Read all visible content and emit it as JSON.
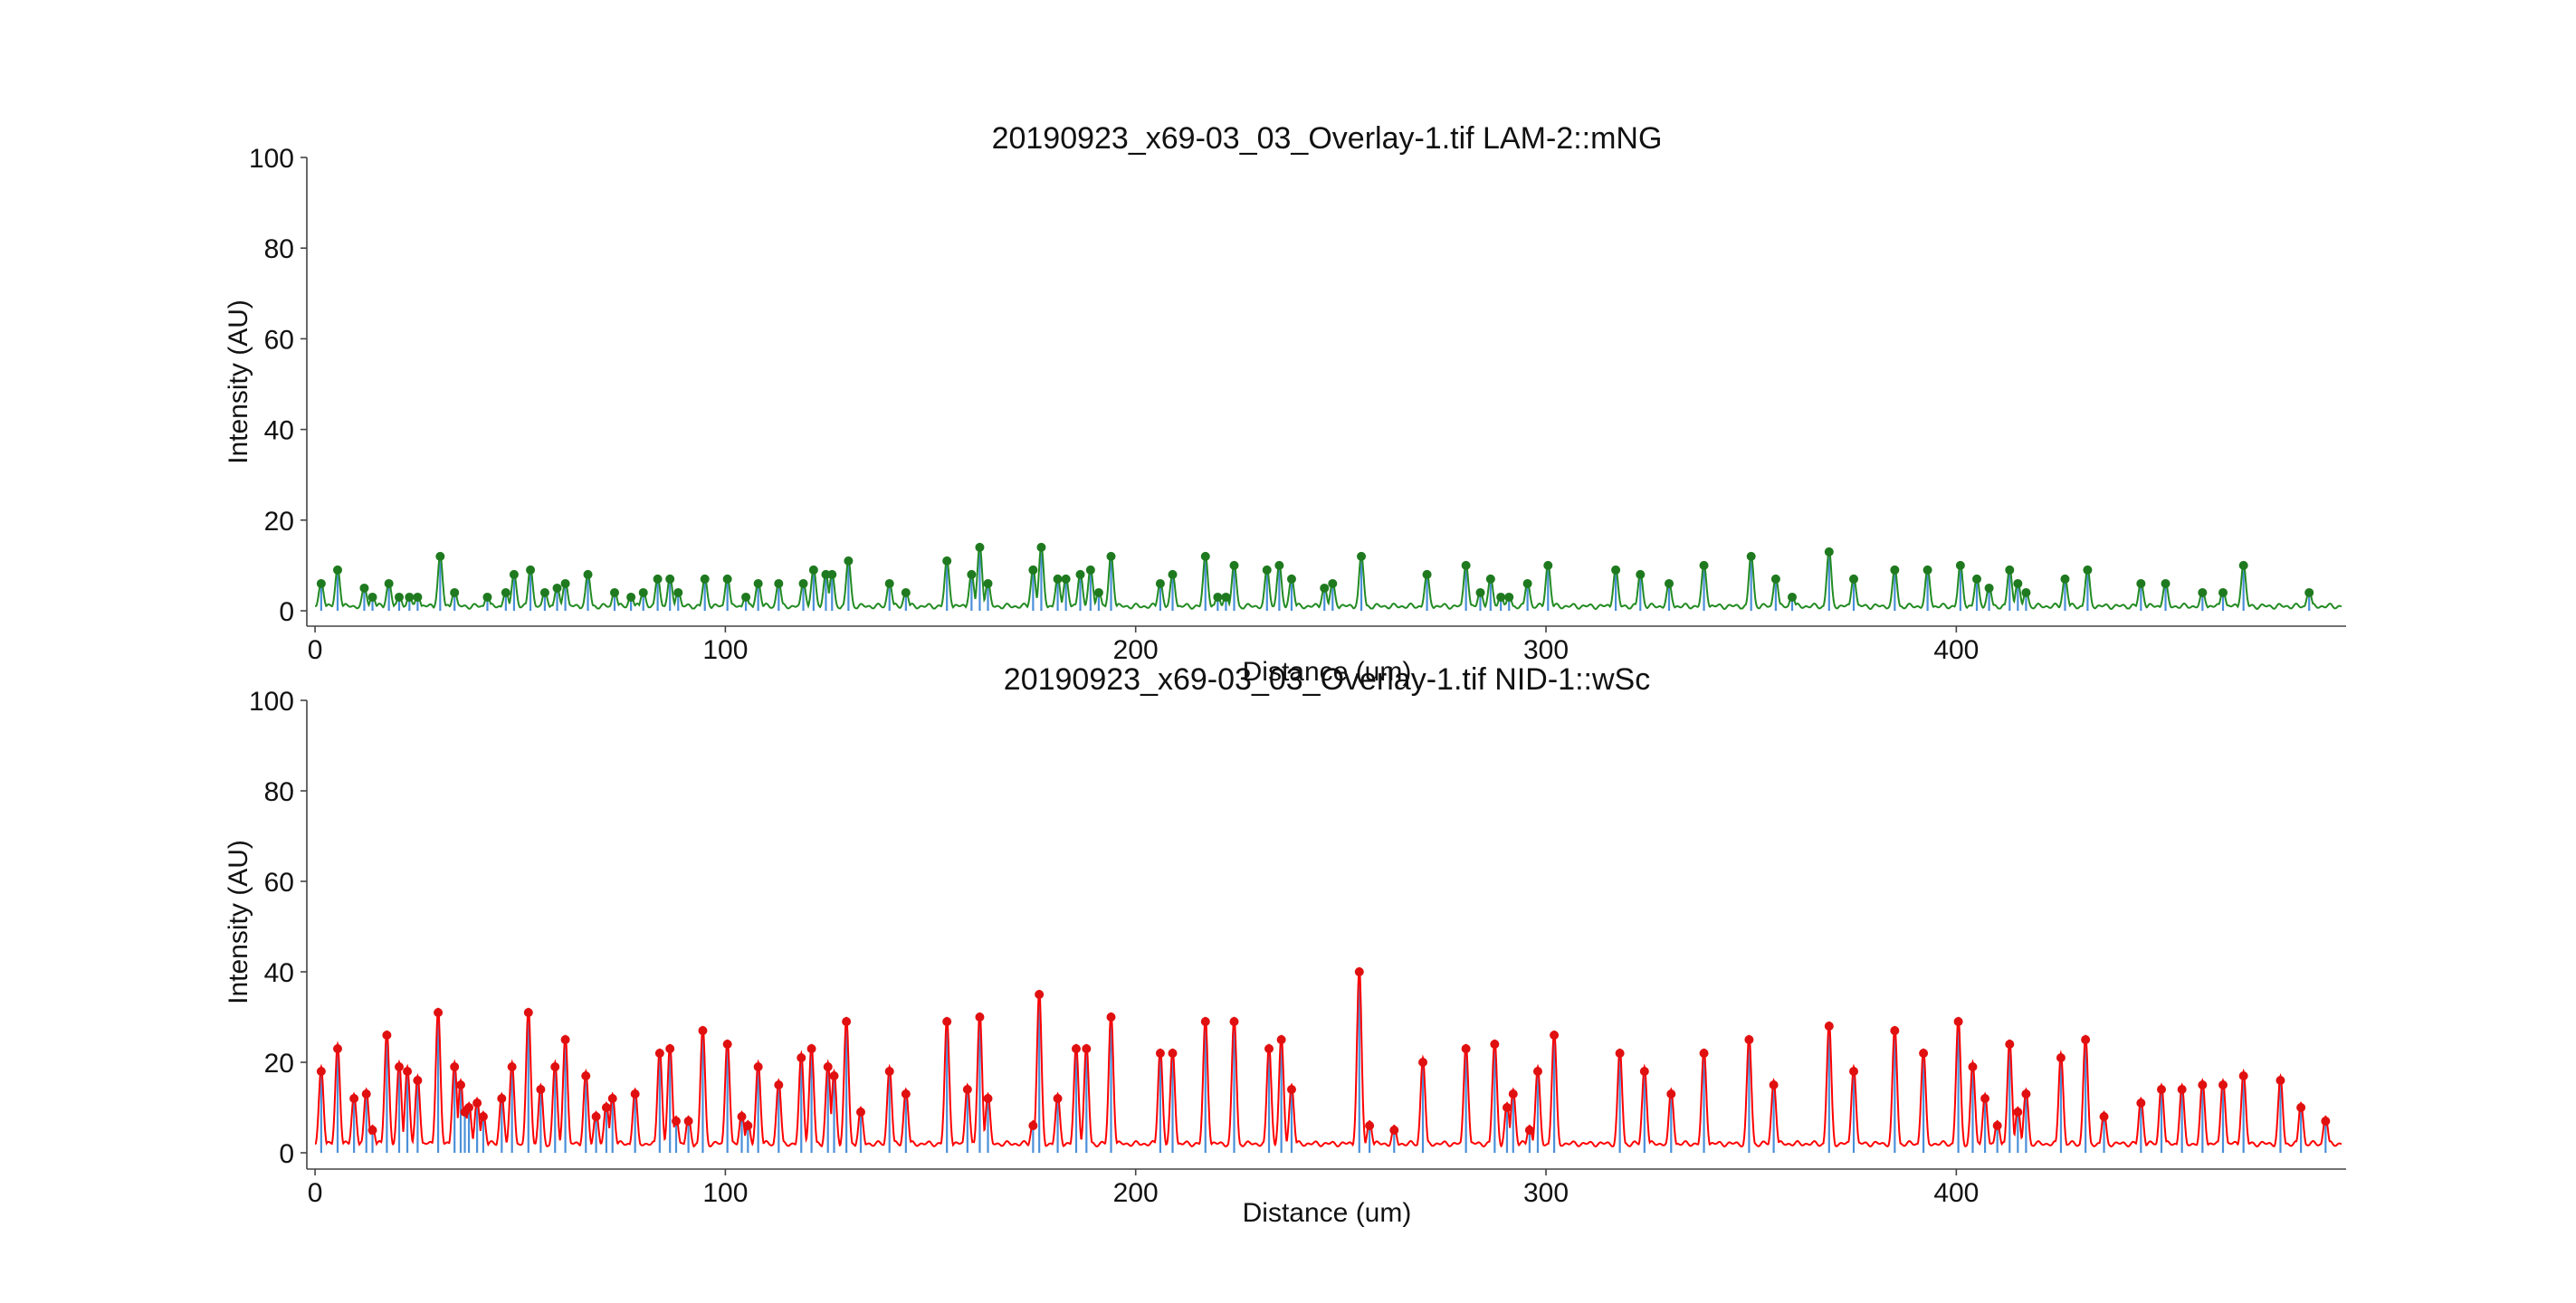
{
  "chart_data": [
    {
      "type": "line",
      "title": "20190923_x69-03_03_Overlay-1.tif LAM-2::mNG",
      "xlabel": "Distance (um)",
      "ylabel": "Intensity (AU)",
      "xlim": [
        -2,
        495
      ],
      "ylim": [
        0,
        100
      ],
      "xticks": [
        "0",
        "100",
        "200",
        "300",
        "400"
      ],
      "yticks": [
        "0",
        "20",
        "40",
        "60",
        "80",
        "100"
      ],
      "grid": false,
      "colors": {
        "signal": "#228b22",
        "peak_marker": "#1f7a1f",
        "peak_stem": "#4a90d9"
      },
      "peaks": [
        [
          1.5,
          6
        ],
        [
          5.5,
          9
        ],
        [
          12,
          5
        ],
        [
          14,
          3
        ],
        [
          18,
          6
        ],
        [
          20.5,
          3
        ],
        [
          23,
          3
        ],
        [
          25,
          3
        ],
        [
          30.5,
          12
        ],
        [
          34,
          4
        ],
        [
          42,
          3
        ],
        [
          46.5,
          4
        ],
        [
          48.5,
          8
        ],
        [
          52.5,
          9
        ],
        [
          56,
          4
        ],
        [
          59,
          5
        ],
        [
          61,
          6
        ],
        [
          66.5,
          8
        ],
        [
          73,
          4
        ],
        [
          77,
          3
        ],
        [
          80,
          4
        ],
        [
          83.5,
          7
        ],
        [
          86.5,
          7
        ],
        [
          88.5,
          4
        ],
        [
          95,
          7
        ],
        [
          100.5,
          7
        ],
        [
          105,
          3
        ],
        [
          108,
          6
        ],
        [
          113,
          6
        ],
        [
          119,
          6
        ],
        [
          121.5,
          9
        ],
        [
          124.5,
          8
        ],
        [
          126,
          8
        ],
        [
          130,
          11
        ],
        [
          140,
          6
        ],
        [
          144,
          4
        ],
        [
          154,
          11
        ],
        [
          160,
          8
        ],
        [
          162,
          14
        ],
        [
          164,
          6
        ],
        [
          175,
          9
        ],
        [
          177,
          14
        ],
        [
          181,
          7
        ],
        [
          183,
          7
        ],
        [
          186.5,
          8
        ],
        [
          189,
          9
        ],
        [
          191,
          4
        ],
        [
          194,
          12
        ],
        [
          206,
          6
        ],
        [
          209,
          8
        ],
        [
          217,
          12
        ],
        [
          220,
          3
        ],
        [
          222,
          3
        ],
        [
          224,
          10
        ],
        [
          232,
          9
        ],
        [
          235,
          10
        ],
        [
          238,
          7
        ],
        [
          246,
          5
        ],
        [
          248,
          6
        ],
        [
          255,
          12
        ],
        [
          271,
          8
        ],
        [
          280.5,
          10
        ],
        [
          284,
          4
        ],
        [
          286.5,
          7
        ],
        [
          289,
          3
        ],
        [
          291,
          3
        ],
        [
          295.5,
          6
        ],
        [
          300.5,
          10
        ],
        [
          317,
          9
        ],
        [
          323,
          8
        ],
        [
          330,
          6
        ],
        [
          338.5,
          10
        ],
        [
          350,
          12
        ],
        [
          356,
          7
        ],
        [
          360,
          3
        ],
        [
          369,
          13
        ],
        [
          375,
          7
        ],
        [
          385,
          9
        ],
        [
          393,
          9
        ],
        [
          401,
          10
        ],
        [
          405,
          7
        ],
        [
          408,
          5
        ],
        [
          413,
          9
        ],
        [
          415,
          6
        ],
        [
          417,
          4
        ],
        [
          426.5,
          7
        ],
        [
          432,
          9
        ],
        [
          445,
          6
        ],
        [
          451,
          6
        ],
        [
          460,
          4
        ],
        [
          465,
          4
        ],
        [
          470,
          10
        ],
        [
          486,
          4
        ]
      ],
      "baseline": 1
    },
    {
      "type": "line",
      "title": "20190923_x69-03_03_Overlay-1.tif NID-1::wSc",
      "xlabel": "Distance (um)",
      "ylabel": "Intensity (AU)",
      "xlim": [
        -2,
        495
      ],
      "ylim": [
        0,
        100
      ],
      "xticks": [
        "0",
        "100",
        "200",
        "300",
        "400"
      ],
      "yticks": [
        "0",
        "20",
        "40",
        "60",
        "80",
        "100"
      ],
      "grid": false,
      "colors": {
        "signal": "#ff0000",
        "peak_marker": "#e01010",
        "peak_stem": "#4a90d9"
      },
      "peaks": [
        [
          1.5,
          18
        ],
        [
          5.5,
          23
        ],
        [
          9.5,
          12
        ],
        [
          12.5,
          13
        ],
        [
          14,
          5
        ],
        [
          17.5,
          26
        ],
        [
          20.5,
          19
        ],
        [
          22.5,
          18
        ],
        [
          25,
          16
        ],
        [
          30,
          31
        ],
        [
          34,
          19
        ],
        [
          35.5,
          15
        ],
        [
          36.5,
          9
        ],
        [
          37.5,
          10
        ],
        [
          39.5,
          11
        ],
        [
          41,
          8
        ],
        [
          45.5,
          12
        ],
        [
          48,
          19
        ],
        [
          52,
          31
        ],
        [
          55,
          14
        ],
        [
          58.5,
          19
        ],
        [
          61,
          25
        ],
        [
          66,
          17
        ],
        [
          68.5,
          8
        ],
        [
          71,
          10
        ],
        [
          72.5,
          12
        ],
        [
          78,
          13
        ],
        [
          84,
          22
        ],
        [
          86.5,
          23
        ],
        [
          88,
          7
        ],
        [
          91,
          7
        ],
        [
          94.5,
          27
        ],
        [
          100.5,
          24
        ],
        [
          104,
          8
        ],
        [
          105.5,
          6
        ],
        [
          108,
          19
        ],
        [
          113,
          15
        ],
        [
          118.5,
          21
        ],
        [
          121,
          23
        ],
        [
          125,
          19
        ],
        [
          126.5,
          17
        ],
        [
          129.5,
          29
        ],
        [
          133,
          9
        ],
        [
          140,
          18
        ],
        [
          144,
          13
        ],
        [
          154,
          29
        ],
        [
          159,
          14
        ],
        [
          162,
          30
        ],
        [
          164,
          12
        ],
        [
          175,
          6
        ],
        [
          176.5,
          35
        ],
        [
          181,
          12
        ],
        [
          185.5,
          23
        ],
        [
          188,
          23
        ],
        [
          194,
          30
        ],
        [
          206,
          22
        ],
        [
          209,
          22
        ],
        [
          217,
          29
        ],
        [
          224,
          29
        ],
        [
          232.5,
          23
        ],
        [
          235.5,
          25
        ],
        [
          238,
          14
        ],
        [
          254.5,
          40
        ],
        [
          257,
          6
        ],
        [
          263,
          5
        ],
        [
          270,
          20
        ],
        [
          280.5,
          23
        ],
        [
          287.5,
          24
        ],
        [
          290.5,
          10
        ],
        [
          292,
          13
        ],
        [
          296,
          5
        ],
        [
          298,
          18
        ],
        [
          302,
          26
        ],
        [
          318,
          22
        ],
        [
          324,
          18
        ],
        [
          330.5,
          13
        ],
        [
          338.5,
          22
        ],
        [
          349.5,
          25
        ],
        [
          355.5,
          15
        ],
        [
          369,
          28
        ],
        [
          375,
          18
        ],
        [
          385,
          27
        ],
        [
          392,
          22
        ],
        [
          400.5,
          29
        ],
        [
          404,
          19
        ],
        [
          407,
          12
        ],
        [
          410,
          6
        ],
        [
          413,
          24
        ],
        [
          415,
          9
        ],
        [
          417,
          13
        ],
        [
          425.5,
          21
        ],
        [
          431.5,
          25
        ],
        [
          436,
          8
        ],
        [
          445,
          11
        ],
        [
          450,
          14
        ],
        [
          455,
          14
        ],
        [
          460,
          15
        ],
        [
          465,
          15
        ],
        [
          470,
          17
        ],
        [
          479,
          16
        ],
        [
          484,
          10
        ],
        [
          490,
          7
        ]
      ],
      "baseline": 2
    }
  ]
}
